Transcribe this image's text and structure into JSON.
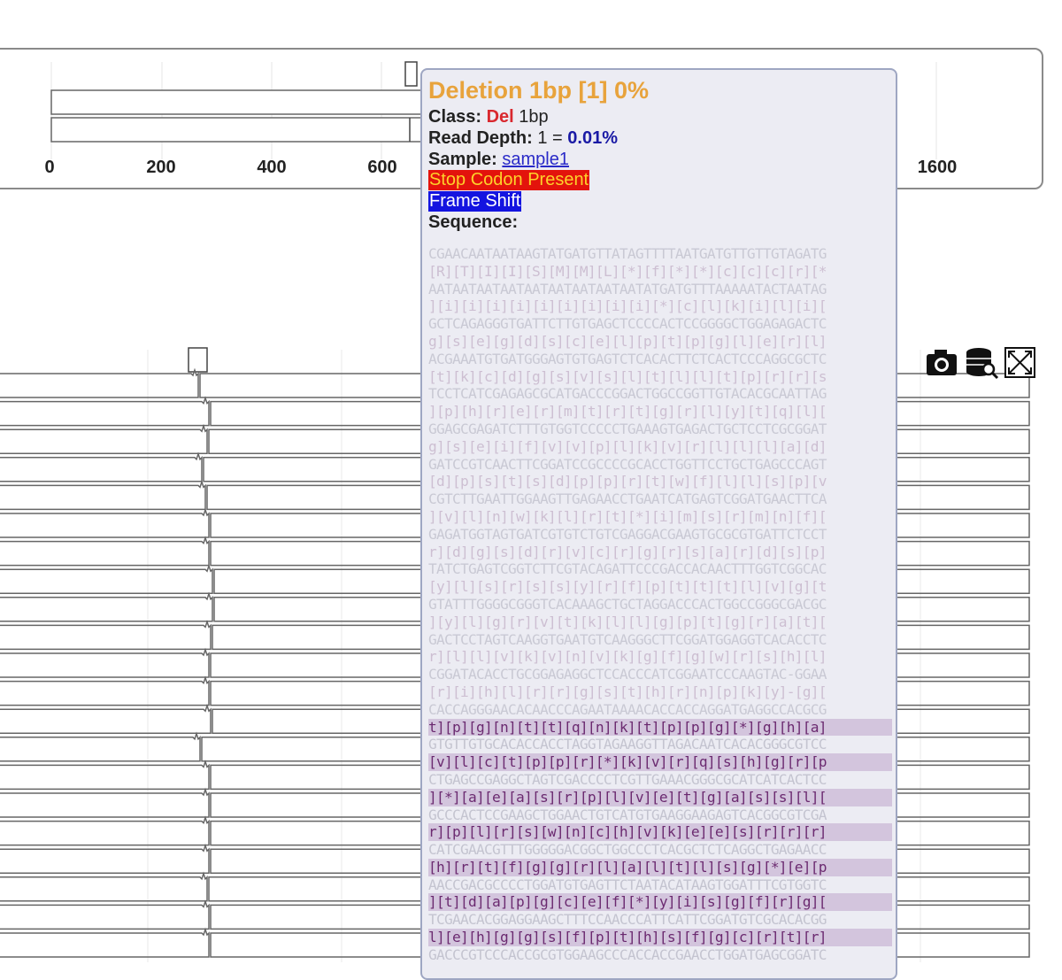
{
  "axis": {
    "ticks": [
      "0",
      "200",
      "400",
      "600",
      "1600"
    ]
  },
  "tooltip": {
    "title": "Deletion 1bp [1] 0%",
    "class_label": "Class:",
    "class_value": "Del",
    "class_size": "1bp",
    "read_depth_label": "Read Depth:",
    "read_depth_value": "1 =",
    "read_depth_pct": "0.01%",
    "sample_label": "Sample:",
    "sample_value": "sample1",
    "stop_badge": "Stop Codon Present",
    "frameshift_badge": "Frame Shift",
    "sequence_label": "Sequence:",
    "sequence": [
      "CGAACAATAATAAGTATGATGTTATAGTTTTAATGATGTTGTTGTAGATG",
      "[R][T][I][I][S][M][M][L][*][f][*][*][c][c][c][r][*",
      "AATAATAATAATAATAATAATAATAATATGATGTTTAAAAATACTAATAG",
      "][i][i][i][i][i][i][i][i][i][*][c][l][k][i][l][i][",
      "GCTCAGAGGGTGATTCTTGTGAGCTCCCCACTCCGGGGCTGGAGAGACTC",
      "g][s][e][g][d][s][c][e][l][p][t][p][g][l][e][r][l]",
      "ACGAAATGTGATGGGAGTGTGAGTCTCACACTTCTCACTCCCAGGCGCTC",
      "[t][k][c][d][g][s][v][s][l][t][l][l][t][p][r][r][s",
      "TCCTCATCGAGAGCGCATGACCCGGACTGGCCGGTTGTACACGCAATTAG",
      "][p][h][r][e][r][m][t][r][t][g][r][l][y][t][q][l][",
      "GGAGCGAGATCTTTGTGGTCCCCCTGAAAGTGAGACTGCTCCTCGCGGAT",
      "g][s][e][i][f][v][v][p][l][k][v][r][l][l][l][a][d]",
      "GATCCGTCAACTTCGGATCCGCCCCGCACCTGGTTCCTGCTGAGCCCAGT",
      "[d][p][s][t][s][d][p][p][r][t][w][f][l][l][s][p][v",
      "CGTCTTGAATTGGAAGTTGAGAACCTGAATCATGAGTCGGATGAACTTCA",
      "][v][l][n][w][k][l][r][t][*][i][m][s][r][m][n][f][",
      "GAGATGGTAGTGATCGTGTCTGTCGAGGACGAAGTGCGCGTGATTCTCCT",
      "r][d][g][s][d][r][v][c][r][g][r][s][a][r][d][s][p]",
      "TATCTGAGTCGGTCTTCGTACAGATTCCCGACCACAACTTTGGTCGGCAC",
      "[y][l][s][r][s][s][y][r][f][p][t][t][t][l][v][g][t",
      "GTATTTGGGGCGGGTCACAAAGCTGCTAGGACCCACTGGCCGGGCGACGC",
      "][y][l][g][r][v][t][k][l][l][g][p][t][g][r][a][t][",
      "GACTCCTAGTCAAGGTGAATGTCAAGGGCTTCGGATGGAGGTCACACCTC",
      "r][l][l][v][k][v][n][v][k][g][f][g][w][r][s][h][l]",
      "CGGATACACCTGCGGAGAGGCTCCACCCATCGGAATCCCAAGTAC-GGAA",
      "[r][i][h][l][r][r][g][s][t][h][r][n][p][k][y]-[g][",
      "CACCAGGGAACACAACCCAGAATAAAACACCACCAGGATGAGGCCACGCG",
      "t][p][g][n][t][t][q][n][k][t][p][p][g][*][g][h][a]",
      "GTGTTGTGCACACCACCTAGGTAGAAGGTTAGACAATCACACGGGCGTCC",
      "[v][l][c][t][p][p][r][*][k][v][r][q][s][h][g][r][p",
      "CTGAGCCGAGGCTAGTCGACCCCTCGTTGAAACGGGCGCATCATCACTCC",
      "][*][a][e][a][s][r][p][l][v][e][t][g][a][s][s][l][",
      "GCCCACTCCGAAGCTGGAACTGTCATGTGAAGGAAGAGTCACGGCGTCGA",
      "r][p][l][r][s][w][n][c][h][v][k][e][e][s][r][r][r]",
      "CATCGAACGTTTGGGGGACGGCTGGCCCTCACGCTCTCAGGCTGAGAACC",
      "[h][r][t][f][g][g][r][l][a][l][t][l][s][g][*][e][p",
      "AACCGACGCCCCTGGATGTGAGTTCTAATACATAAGTGGATTTCGTGGTC",
      "][t][d][a][p][g][c][e][f][*][y][i][s][g][f][r][g][",
      "TCGAACACGGAGGAAGCTTTCCAACCCATTCATTCGGATGTCGCACACGG",
      "l][e][h][g][g][s][f][p][t][h][s][f][g][c][r][t][r]",
      "GACCCGTCCCACCGCGTGGAAGCCCACCACCGAACCTGGATGAGCGGATC"
    ]
  },
  "toolbar": {
    "camera": "camera-icon",
    "database_search": "database-search-icon",
    "fullscreen": "fullscreen-icon"
  },
  "colors": {
    "title": "#e8a33c",
    "del": "#d9282f",
    "stop_bg": "#e3130c",
    "stop_fg": "#fdd22a",
    "frameshift_bg": "#1414e0"
  }
}
